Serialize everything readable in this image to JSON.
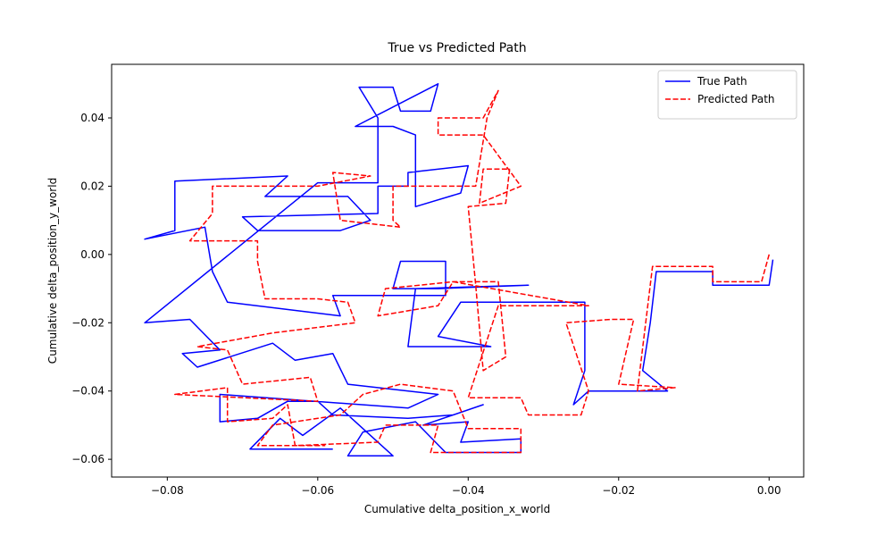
{
  "chart_data": {
    "type": "line",
    "title": "True vs Predicted Path",
    "x_label": "Cumulative delta_position_x_world",
    "y_label": "Cumulative delta_position_y_world",
    "xlim": [
      -0.0874,
      0.0046
    ],
    "ylim": [
      -0.0652,
      0.0557
    ],
    "xticks": [
      {
        "value": -0.08,
        "label": "−0.08"
      },
      {
        "value": -0.06,
        "label": "−0.06"
      },
      {
        "value": -0.04,
        "label": "−0.04"
      },
      {
        "value": -0.02,
        "label": "−0.02"
      },
      {
        "value": 0,
        "label": "0.00"
      }
    ],
    "yticks": [
      {
        "value": -0.06,
        "label": "−0.06"
      },
      {
        "value": -0.04,
        "label": "−0.04"
      },
      {
        "value": -0.02,
        "label": "−0.02"
      },
      {
        "value": 0,
        "label": "0.00"
      },
      {
        "value": 0.02,
        "label": "0.02"
      },
      {
        "value": 0.04,
        "label": "0.04"
      }
    ],
    "legend": "upper right",
    "series": [
      {
        "name": "True Path",
        "color": "#0000ff",
        "linestyle": "solid",
        "x": [
          0.0005,
          0.0,
          -0.0075,
          -0.0075,
          -0.015,
          -0.0158,
          -0.0168,
          -0.0135,
          -0.024,
          -0.026,
          -0.0245,
          -0.0245,
          -0.041,
          -0.044,
          -0.037,
          -0.048,
          -0.047,
          -0.032,
          -0.044,
          -0.05,
          -0.049,
          -0.043,
          -0.043,
          -0.058,
          -0.057,
          -0.072,
          -0.074,
          -0.075,
          -0.083,
          -0.079,
          -0.079,
          -0.064,
          -0.067,
          -0.056,
          -0.053,
          -0.057,
          -0.068,
          -0.07,
          -0.052,
          -0.052,
          -0.048,
          -0.048,
          -0.04,
          -0.041,
          -0.047,
          -0.047,
          -0.05,
          -0.055,
          -0.044,
          -0.045,
          -0.049,
          -0.05,
          -0.0545,
          -0.052,
          -0.052,
          -0.06,
          -0.083,
          -0.077,
          -0.073,
          -0.078,
          -0.076,
          -0.066,
          -0.063,
          -0.058,
          -0.056,
          -0.044,
          -0.048,
          -0.073,
          -0.073,
          -0.068,
          -0.064,
          -0.06,
          -0.058,
          -0.048,
          -0.042,
          -0.038,
          -0.046,
          -0.04,
          -0.041,
          -0.033,
          -0.033,
          -0.043,
          -0.047,
          -0.054,
          -0.056,
          -0.05,
          -0.057,
          -0.062,
          -0.065,
          -0.069,
          -0.058
        ],
        "values": [
          -0.0015,
          -0.009,
          -0.009,
          -0.005,
          -0.005,
          -0.02,
          -0.034,
          -0.04,
          -0.04,
          -0.044,
          -0.034,
          -0.014,
          -0.014,
          -0.024,
          -0.027,
          -0.027,
          -0.01,
          -0.009,
          -0.01,
          -0.01,
          -0.002,
          -0.002,
          -0.012,
          -0.012,
          -0.018,
          -0.014,
          -0.005,
          0.008,
          0.0045,
          0.007,
          0.0215,
          0.023,
          0.017,
          0.017,
          0.01,
          0.007,
          0.007,
          0.011,
          0.012,
          0.02,
          0.02,
          0.024,
          0.026,
          0.018,
          0.014,
          0.035,
          0.0375,
          0.0375,
          0.05,
          0.042,
          0.042,
          0.049,
          0.049,
          0.04,
          0.021,
          0.021,
          -0.02,
          -0.019,
          -0.028,
          -0.029,
          -0.033,
          -0.026,
          -0.031,
          -0.029,
          -0.038,
          -0.041,
          -0.045,
          -0.041,
          -0.049,
          -0.048,
          -0.043,
          -0.043,
          -0.047,
          -0.048,
          -0.047,
          -0.044,
          -0.05,
          -0.049,
          -0.055,
          -0.054,
          -0.058,
          -0.058,
          -0.049,
          -0.052,
          -0.059,
          -0.059,
          -0.045,
          -0.053,
          -0.048,
          -0.057,
          -0.057
        ]
      },
      {
        "name": "Predicted Path",
        "color": "#ff0000",
        "linestyle": "dashed",
        "x": [
          0.0,
          -0.001,
          -0.0075,
          -0.0075,
          -0.0155,
          -0.0175,
          -0.0125,
          -0.02,
          -0.018,
          -0.021,
          -0.027,
          -0.024,
          -0.025,
          -0.032,
          -0.033,
          -0.04,
          -0.036,
          -0.024,
          -0.042,
          -0.044,
          -0.052,
          -0.051,
          -0.042,
          -0.036,
          -0.035,
          -0.038,
          -0.039,
          -0.04,
          -0.035,
          -0.0345,
          -0.038,
          -0.0385,
          -0.033,
          -0.038,
          -0.044,
          -0.044,
          -0.038,
          -0.036,
          -0.0375,
          -0.039,
          -0.05,
          -0.05,
          -0.049,
          -0.057,
          -0.058,
          -0.053,
          -0.06,
          -0.074,
          -0.074,
          -0.077,
          -0.068,
          -0.068,
          -0.067,
          -0.06,
          -0.056,
          -0.055,
          -0.066,
          -0.076,
          -0.072,
          -0.07,
          -0.061,
          -0.06,
          -0.079,
          -0.072,
          -0.072,
          -0.066,
          -0.064,
          -0.063,
          -0.052,
          -0.051,
          -0.044,
          -0.045,
          -0.033,
          -0.033,
          -0.04,
          -0.042,
          -0.049,
          -0.054,
          -0.057,
          -0.066,
          -0.068,
          -0.059
        ],
        "values": [
          0.0,
          -0.008,
          -0.008,
          -0.0035,
          -0.0035,
          -0.04,
          -0.039,
          -0.038,
          -0.019,
          -0.019,
          -0.02,
          -0.04,
          -0.047,
          -0.047,
          -0.042,
          -0.042,
          -0.015,
          -0.015,
          -0.008,
          -0.015,
          -0.018,
          -0.01,
          -0.008,
          -0.008,
          -0.03,
          -0.034,
          -0.009,
          0.014,
          0.015,
          0.025,
          0.025,
          0.015,
          0.02,
          0.035,
          0.035,
          0.04,
          0.04,
          0.048,
          0.04,
          0.02,
          0.02,
          0.01,
          0.008,
          0.01,
          0.024,
          0.023,
          0.02,
          0.02,
          0.012,
          0.004,
          0.004,
          -0.002,
          -0.013,
          -0.013,
          -0.014,
          -0.02,
          -0.023,
          -0.027,
          -0.028,
          -0.038,
          -0.036,
          -0.043,
          -0.041,
          -0.039,
          -0.049,
          -0.048,
          -0.044,
          -0.056,
          -0.055,
          -0.05,
          -0.05,
          -0.058,
          -0.058,
          -0.051,
          -0.051,
          -0.04,
          -0.038,
          -0.041,
          -0.047,
          -0.05,
          -0.056,
          -0.056
        ]
      }
    ]
  }
}
